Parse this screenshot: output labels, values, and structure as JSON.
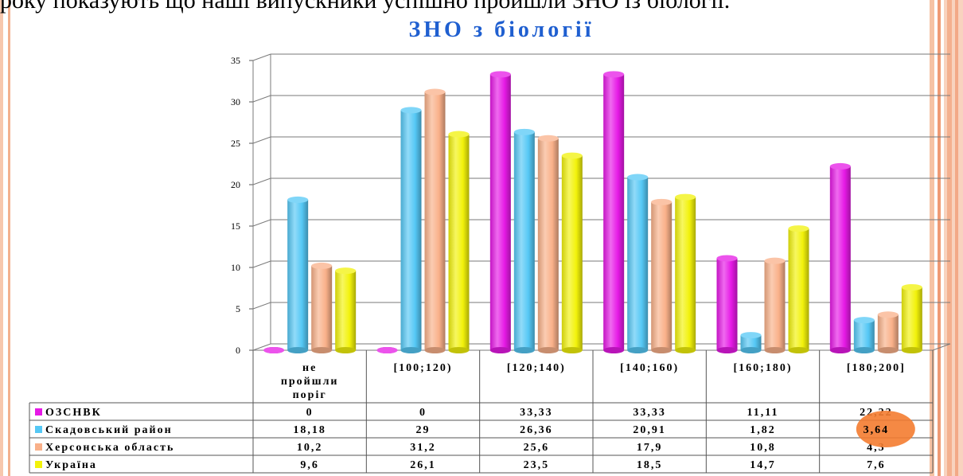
{
  "page": {
    "top_text": "року показують  що наші випускники успішно пройшли ЗНО  із біології."
  },
  "chart_data": {
    "type": "bar",
    "title": "ЗНО з біології",
    "categories": [
      "не пройшли поріг",
      "[100;120)",
      "[120;140)",
      "[140;160)",
      "[160;180)",
      "[180;200]"
    ],
    "category_lines": [
      [
        "не",
        "пройшли",
        "поріг"
      ],
      [
        "[100;120)"
      ],
      [
        "[120;140)"
      ],
      [
        "[140;160)"
      ],
      [
        "[160;180)"
      ],
      [
        "[180;200]"
      ]
    ],
    "series": [
      {
        "name": "ОЗСНВК",
        "color": "#e619e6",
        "values": [
          0,
          0,
          33.33,
          33.33,
          11.11,
          22.22
        ],
        "labels": [
          "0",
          "0",
          "33,33",
          "33,33",
          "11,11",
          "22,22"
        ]
      },
      {
        "name": "Скадовський район",
        "color": "#55c8f5",
        "values": [
          18.18,
          29,
          26.36,
          20.91,
          1.82,
          3.64
        ],
        "labels": [
          "18,18",
          "29",
          "26,36",
          "20,91",
          "1,82",
          "3,64"
        ]
      },
      {
        "name": "Херсонська область",
        "color": "#f9b089",
        "values": [
          10.2,
          31.2,
          25.6,
          17.9,
          10.8,
          4.3
        ],
        "labels": [
          "10,2",
          "31,2",
          "25,6",
          "17,9",
          "10,8",
          "4,3"
        ]
      },
      {
        "name": "Україна",
        "color": "#f2f20a",
        "values": [
          9.6,
          26.1,
          23.5,
          18.5,
          14.7,
          7.6
        ],
        "labels": [
          "9,6",
          "26,1",
          "23,5",
          "18,5",
          "14,7",
          "7,6"
        ]
      }
    ],
    "yticks": [
      "0",
      "5",
      "10",
      "15",
      "20",
      "25",
      "30",
      "35"
    ],
    "ylim": [
      0,
      35
    ],
    "grid": true,
    "legend": "data-table"
  },
  "colors": {
    "title": "#1f5fd0",
    "highlight": "#f47c30"
  }
}
